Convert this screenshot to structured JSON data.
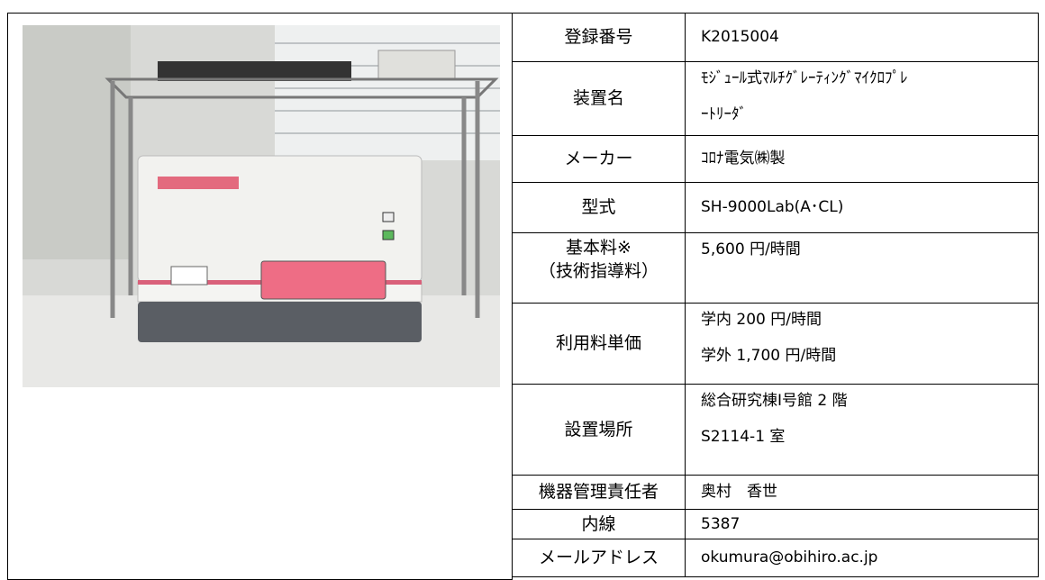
{
  "table": {
    "rows": [
      {
        "label": [
          "登録番号"
        ],
        "value": [
          "K2015004"
        ]
      },
      {
        "label": [
          "装置名"
        ],
        "value": [
          "ﾓｼﾞｭｰﾙ式ﾏﾙﾁｸﾞﾚｰﾃｨﾝｸﾞﾏｲｸﾛﾌﾟﾚ",
          "ｰﾄﾘｰﾀﾞ"
        ]
      },
      {
        "label": [
          "メーカー"
        ],
        "value": [
          "ｺﾛﾅ電気㈱製"
        ]
      },
      {
        "label": [
          "型式"
        ],
        "value": [
          "SH-9000Lab(A･CL)"
        ]
      },
      {
        "label": [
          "基本料※",
          "（技術指導料）"
        ],
        "value": [
          "5,600 円/時間"
        ]
      },
      {
        "label": [
          "利用料単価"
        ],
        "value": [
          "学内 200 円/時間",
          "学外 1,700 円/時間"
        ]
      },
      {
        "label": [
          "設置場所"
        ],
        "value": [
          "総合研究棟Ⅰ号館 2 階",
          "S2114-1 室"
        ]
      },
      {
        "label": [
          "機器管理責任者"
        ],
        "value": [
          "奥村　香世"
        ]
      },
      {
        "label": [
          "内線"
        ],
        "value": [
          "5387"
        ]
      },
      {
        "label": [
          "メールアドレス"
        ],
        "value": [
          "okumura@obihiro.ac.jp"
        ]
      }
    ]
  }
}
